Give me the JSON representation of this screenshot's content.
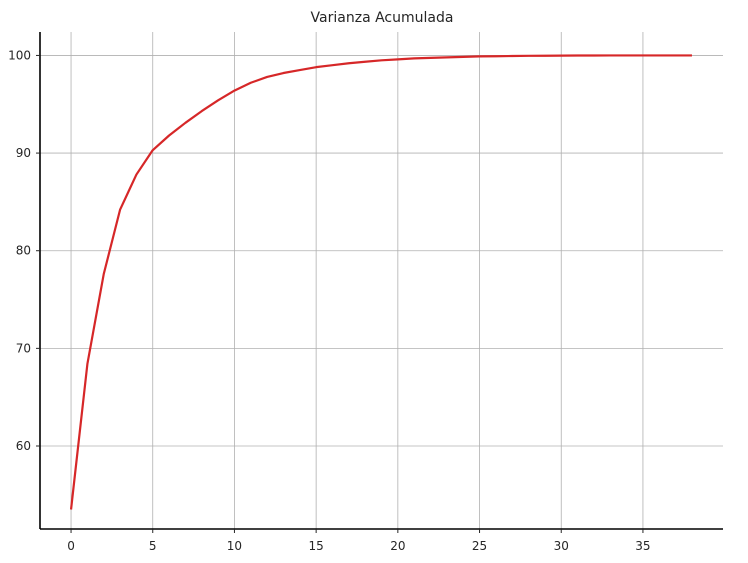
{
  "chart_data": {
    "type": "line",
    "title": "Varianza Acumulada",
    "xlabel": "",
    "ylabel": "",
    "xlim": [
      -1.9,
      39.9
    ],
    "ylim": [
      51.5,
      102.4
    ],
    "x_ticks": [
      0,
      5,
      10,
      15,
      20,
      25,
      30,
      35
    ],
    "y_ticks": [
      60,
      70,
      80,
      90,
      100
    ],
    "grid": true,
    "line_color": "#d62728",
    "series": [
      {
        "x": [
          0,
          1,
          2,
          3,
          4,
          5,
          6,
          7,
          8,
          9,
          10,
          11,
          12,
          13,
          14,
          15,
          16,
          17,
          18,
          19,
          20,
          21,
          22,
          23,
          24,
          25,
          26,
          27,
          28,
          29,
          30,
          31,
          32,
          33,
          34,
          35,
          36,
          37,
          38
        ],
        "values": [
          53.5,
          68.4,
          77.6,
          84.2,
          87.8,
          90.3,
          91.8,
          93.1,
          94.3,
          95.4,
          96.4,
          97.2,
          97.8,
          98.2,
          98.5,
          98.8,
          99.0,
          99.2,
          99.35,
          99.5,
          99.6,
          99.7,
          99.75,
          99.8,
          99.85,
          99.9,
          99.92,
          99.94,
          99.96,
          99.97,
          99.98,
          99.99,
          99.99,
          100.0,
          100.0,
          100.0,
          100.0,
          100.0,
          100.0
        ]
      }
    ]
  }
}
